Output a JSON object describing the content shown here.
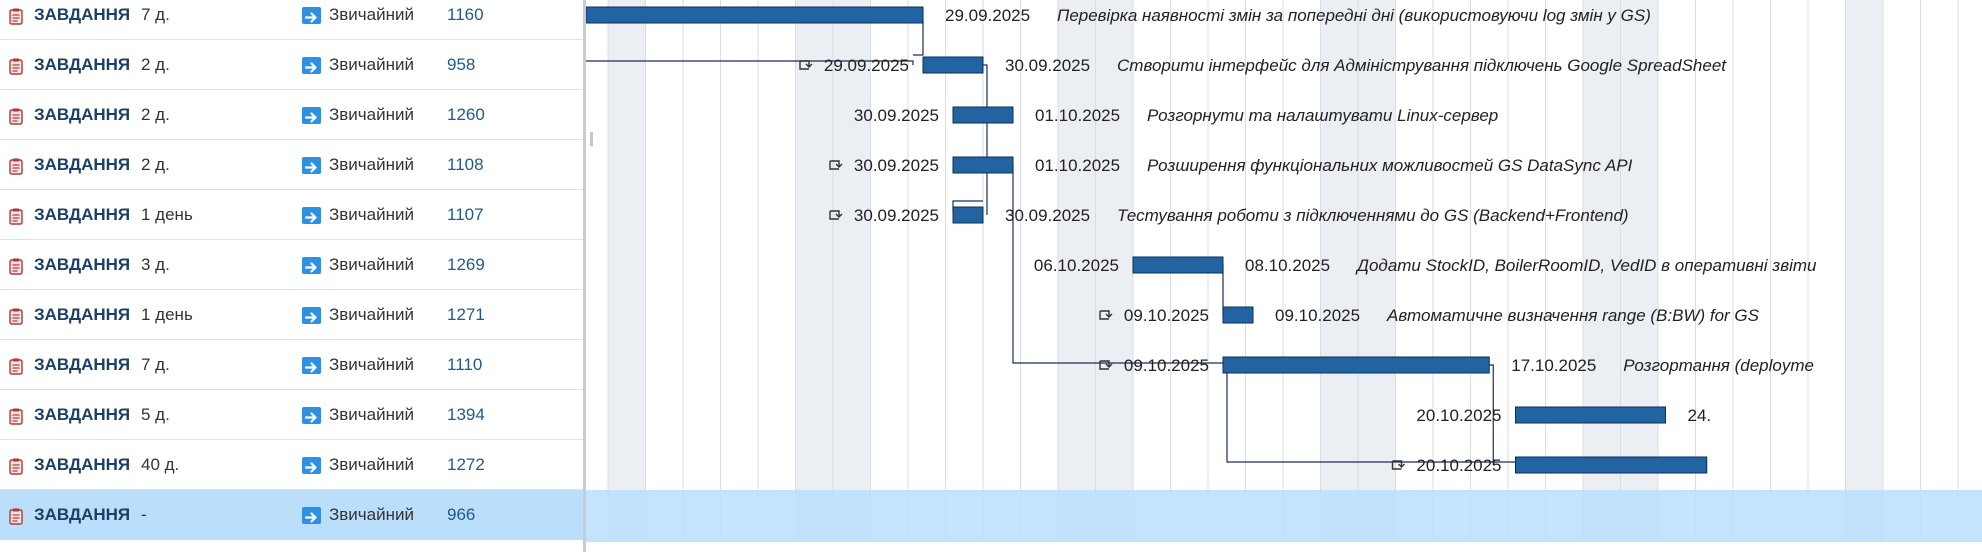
{
  "tasks": [
    {
      "type": "ЗАВДАННЯ",
      "duration": "7 д.",
      "priority": "Звичайний",
      "id": "1160",
      "start_label": "",
      "start_icon": false,
      "end_label": "29.09.2025",
      "name": "Перевірка наявності змін за попередні дні (використовуючи log змін у GS)"
    },
    {
      "type": "ЗАВДАННЯ",
      "duration": "2 д.",
      "priority": "Звичайний",
      "id": "958",
      "start_label": "29.09.2025",
      "start_icon": true,
      "end_label": "30.09.2025",
      "name": "Створити інтерфейс для Адміністрування підключень Google SpreadSheet"
    },
    {
      "type": "ЗАВДАННЯ",
      "duration": "2 д.",
      "priority": "Звичайний",
      "id": "1260",
      "start_label": "30.09.2025",
      "start_icon": false,
      "end_label": "01.10.2025",
      "name": "Розгорнути та налаштувати Linux-сервер"
    },
    {
      "type": "ЗАВДАННЯ",
      "duration": "2 д.",
      "priority": "Звичайний",
      "id": "1108",
      "start_label": "30.09.2025",
      "start_icon": true,
      "end_label": "01.10.2025",
      "name": "Розширення функціональних можливостей GS DataSync API"
    },
    {
      "type": "ЗАВДАННЯ",
      "duration": "1 день",
      "priority": "Звичайний",
      "id": "1107",
      "start_label": "30.09.2025",
      "start_icon": true,
      "end_label": "30.09.2025",
      "name": "Тестування роботи з підключеннями до GS (Backend+Frontend)"
    },
    {
      "type": "ЗАВДАННЯ",
      "duration": "3 д.",
      "priority": "Звичайний",
      "id": "1269",
      "start_label": "06.10.2025",
      "start_icon": false,
      "end_label": "08.10.2025",
      "name": "Додати StockID, BoilerRoomID, VedID в оперативні звіти"
    },
    {
      "type": "ЗАВДАННЯ",
      "duration": "1 день",
      "priority": "Звичайний",
      "id": "1271",
      "start_label": "09.10.2025",
      "start_icon": true,
      "end_label": "09.10.2025",
      "name": "Автоматичне визначення range (B:BW) for GS"
    },
    {
      "type": "ЗАВДАННЯ",
      "duration": "7 д.",
      "priority": "Звичайний",
      "id": "1110",
      "start_label": "09.10.2025",
      "start_icon": true,
      "end_label": "17.10.2025",
      "name": "Розгортання (deployme"
    },
    {
      "type": "ЗАВДАННЯ",
      "duration": "5 д.",
      "priority": "Звичайний",
      "id": "1394",
      "start_label": "20.10.2025",
      "start_icon": false,
      "end_label": "24.",
      "name": ""
    },
    {
      "type": "ЗАВДАННЯ",
      "duration": "40 д.",
      "priority": "Звичайний",
      "id": "1272",
      "start_label": "20.10.2025",
      "start_icon": true,
      "end_label": "",
      "name": ""
    },
    {
      "type": "ЗАВДАННЯ",
      "duration": "-",
      "priority": "Звичайний",
      "id": "966",
      "start_label": "",
      "start_icon": false,
      "end_label": "",
      "name": "",
      "selected": true
    }
  ],
  "colors": {
    "bar_fill": "#2263a1",
    "bar_stroke": "#0b2f57",
    "weekend_shade": "#ebeef2",
    "selected_row": "#bbdefb",
    "grid_line": "#d8dde3",
    "dependency_line": "#1a2e55"
  },
  "icons": {
    "task_type": "clipboard-icon",
    "priority": "arrow-right-icon",
    "start_dependency": "link-constraint-icon"
  }
}
